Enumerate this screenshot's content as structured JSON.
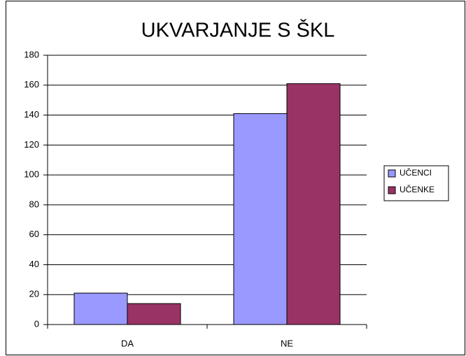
{
  "chart_data": {
    "type": "bar",
    "title": "UKVARJANJE S ŠKL",
    "categories": [
      "DA",
      "NE"
    ],
    "series": [
      {
        "name": "UČENCI",
        "color": "#9999ff",
        "values": [
          21,
          141
        ]
      },
      {
        "name": "UČENKE",
        "color": "#993366",
        "values": [
          14,
          161
        ]
      }
    ],
    "ylim": [
      0,
      180
    ],
    "yticks": [
      0,
      20,
      40,
      60,
      80,
      100,
      120,
      140,
      160,
      180
    ],
    "grid": true,
    "legend": "right"
  }
}
